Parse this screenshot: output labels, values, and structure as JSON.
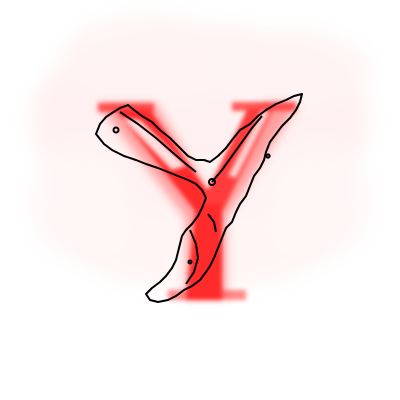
{
  "figure": {
    "glyph": "Y",
    "glyph_color": "#ff2a2a",
    "haze_color": "#ffe6e6",
    "outline_color": "#000000",
    "background": "#ffffff"
  }
}
